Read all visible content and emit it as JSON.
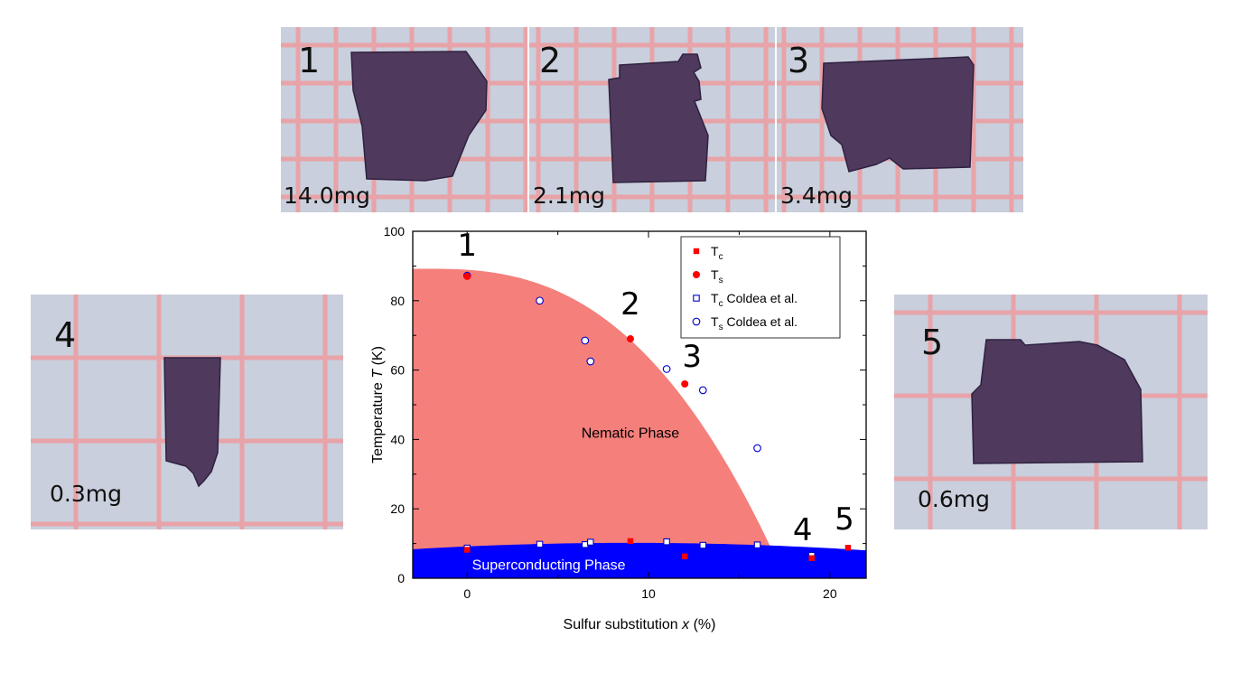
{
  "samples": [
    {
      "number": "1",
      "mass": "14.0mg"
    },
    {
      "number": "2",
      "mass": "2.1mg"
    },
    {
      "number": "3",
      "mass": "3.4mg"
    },
    {
      "number": "4",
      "mass": "0.3mg"
    },
    {
      "number": "5",
      "mass": "0.6mg"
    }
  ],
  "colors": {
    "nematic": "#f47f7b",
    "superconducting": "#0000ff",
    "tc_marker": "#ff0000",
    "ts_marker": "#ff0000",
    "coldea_marker": "#0000cc",
    "paper": "#c9cfdc",
    "grid": "#e8a3a8",
    "crystal": "#4f3a5e"
  },
  "chart_data": {
    "type": "scatter",
    "xlabel_prefix": "Sulfur substitution ",
    "xlabel_var": "x",
    "xlabel_suffix": " (%)",
    "ylabel_prefix": "Temperature ",
    "ylabel_var": "T",
    "ylabel_suffix": " (K)",
    "xlim": [
      -3,
      22
    ],
    "ylim": [
      0,
      100
    ],
    "xticks": [
      0,
      10,
      20
    ],
    "yticks": [
      0,
      20,
      40,
      60,
      80,
      100
    ],
    "regions": [
      {
        "name": "Nematic Phase",
        "x": 9,
        "y": 42
      },
      {
        "name": "Superconducting Phase",
        "x": 4.5,
        "y": 4
      }
    ],
    "legend": {
      "position": "top-right",
      "entries": [
        {
          "main": "T",
          "sub": "c",
          "rest": ""
        },
        {
          "main": "T",
          "sub": "s",
          "rest": ""
        },
        {
          "main": "T",
          "sub": "c",
          "rest": " Coldea et al."
        },
        {
          "main": "T",
          "sub": "s",
          "rest": " Coldea et al."
        }
      ]
    },
    "series": [
      {
        "key": "tc",
        "marker": "square-filled",
        "points": [
          [
            0,
            8.2
          ],
          [
            9,
            10.7
          ],
          [
            12,
            6.3
          ],
          [
            19,
            5.8
          ],
          [
            21,
            8.8
          ]
        ]
      },
      {
        "key": "ts",
        "marker": "circle-filled",
        "points": [
          [
            0,
            87
          ],
          [
            9,
            69
          ],
          [
            12,
            56
          ]
        ]
      },
      {
        "key": "tc_coldea",
        "marker": "square-open",
        "points": [
          [
            0,
            8.7
          ],
          [
            4,
            9.8
          ],
          [
            6.5,
            9.7
          ],
          [
            6.8,
            10.4
          ],
          [
            11,
            10.5
          ],
          [
            13,
            9.5
          ],
          [
            16,
            9.6
          ],
          [
            19,
            6.6
          ]
        ]
      },
      {
        "key": "ts_coldea",
        "marker": "circle-open",
        "points": [
          [
            0,
            87.2
          ],
          [
            4,
            80
          ],
          [
            6.5,
            68.5
          ],
          [
            6.8,
            62.5
          ],
          [
            11,
            60.3
          ],
          [
            13,
            54.2
          ],
          [
            16,
            37.5
          ]
        ]
      }
    ],
    "annotations": [
      {
        "text": "1",
        "x": 0,
        "y": 93
      },
      {
        "text": "2",
        "x": 9,
        "y": 76
      },
      {
        "text": "3",
        "x": 12.4,
        "y": 61
      },
      {
        "text": "4",
        "x": 18.5,
        "y": 11
      },
      {
        "text": "5",
        "x": 20.8,
        "y": 14
      }
    ]
  }
}
